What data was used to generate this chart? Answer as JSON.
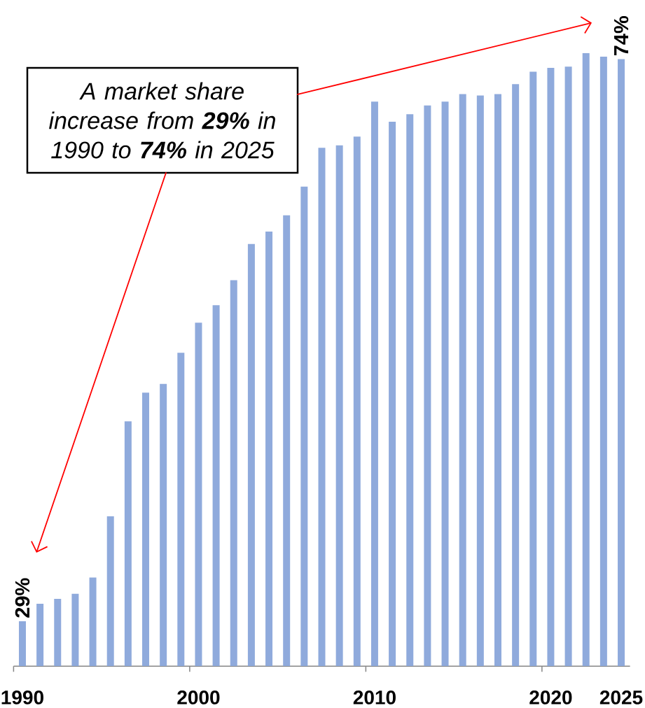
{
  "chart_data": {
    "type": "bar",
    "categories": [
      "1990",
      null,
      null,
      null,
      null,
      null,
      null,
      null,
      null,
      null,
      "2000",
      null,
      null,
      null,
      null,
      null,
      null,
      null,
      null,
      null,
      "2010",
      null,
      null,
      null,
      null,
      null,
      null,
      null,
      null,
      null,
      "2020",
      null,
      null,
      null,
      "2025"
    ],
    "values": [
      29.0,
      30.4,
      30.8,
      31.2,
      32.5,
      37.4,
      45.0,
      47.3,
      48.0,
      50.5,
      52.9,
      54.3,
      56.3,
      59.2,
      60.2,
      61.5,
      63.8,
      66.9,
      67.1,
      67.8,
      70.6,
      69.0,
      69.6,
      70.3,
      70.6,
      71.2,
      71.1,
      71.2,
      72.0,
      73.0,
      73.3,
      73.4,
      74.5,
      74.2,
      74.0
    ],
    "value_labels": [
      "29%",
      null,
      null,
      null,
      null,
      null,
      null,
      null,
      null,
      null,
      null,
      null,
      null,
      null,
      null,
      null,
      null,
      null,
      null,
      null,
      null,
      null,
      null,
      null,
      null,
      null,
      null,
      null,
      null,
      null,
      null,
      null,
      null,
      null,
      "74%"
    ],
    "color": "#8faadc",
    "ylim": [
      25.4,
      74.5
    ],
    "annotations": [
      "A market share increase from **29%** in 1990 to **74%** in 2025"
    ]
  }
}
